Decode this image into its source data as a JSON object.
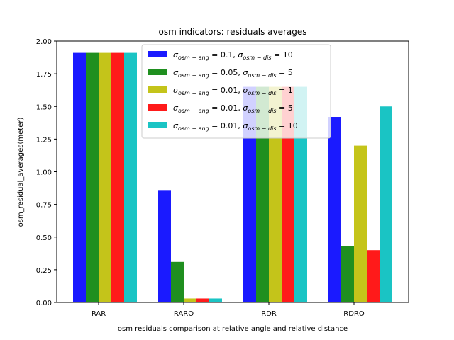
{
  "chart_data": {
    "type": "bar",
    "title": "osm indicators: residuals averages",
    "xlabel": "osm residuals comparison at relative angle and relative distance",
    "ylabel": "osm_residual_averages(meter)",
    "categories": [
      "RAR",
      "RARO",
      "RDR",
      "RDRO"
    ],
    "ylim": [
      0,
      2.0
    ],
    "yticks": [
      0.0,
      0.25,
      0.5,
      0.75,
      1.0,
      1.25,
      1.5,
      1.75,
      2.0
    ],
    "ytick_labels": [
      "0.00",
      "0.25",
      "0.50",
      "0.75",
      "1.00",
      "1.25",
      "1.50",
      "1.75",
      "2.00"
    ],
    "legend_position": "top-center",
    "grid": false,
    "series": [
      {
        "name": "σ_{osm−ang} = 0.1, σ_{osm−dis} = 10",
        "sub_ang": "osm − ang",
        "val_ang": " = 0.1,",
        "sub_dis": "osm − dis",
        "val_dis": " = 10",
        "color": "#1a1aff",
        "values": [
          1.91,
          0.86,
          1.65,
          1.42
        ]
      },
      {
        "name": "σ_{osm−ang} = 0.05, σ_{osm−dis} = 5",
        "sub_ang": "osm − ang",
        "val_ang": " = 0.05,",
        "sub_dis": "osm − dis",
        "val_dis": " = 5",
        "color": "#1f8f1f",
        "values": [
          1.91,
          0.31,
          1.65,
          0.43
        ]
      },
      {
        "name": "σ_{osm−ang} = 0.01, σ_{osm−dis} = 1",
        "sub_ang": "osm − ang",
        "val_ang": " = 0.01,",
        "sub_dis": "osm − dis",
        "val_dis": " = 1",
        "color": "#c4c41a",
        "values": [
          1.91,
          0.03,
          1.65,
          1.2
        ]
      },
      {
        "name": "σ_{osm−ang} = 0.01, σ_{osm−dis} = 5",
        "sub_ang": "osm − ang",
        "val_ang": " = 0.01,",
        "sub_dis": "osm − dis",
        "val_dis": " = 5",
        "color": "#ff1a1a",
        "values": [
          1.91,
          0.03,
          1.65,
          0.4
        ]
      },
      {
        "name": "σ_{osm−ang} = 0.01, σ_{osm−dis} = 10",
        "sub_ang": "osm − ang",
        "val_ang": " = 0.01,",
        "sub_dis": "osm − dis",
        "val_dis": " = 10",
        "color": "#1ac4c4",
        "values": [
          1.91,
          0.03,
          1.65,
          1.5
        ]
      }
    ]
  }
}
